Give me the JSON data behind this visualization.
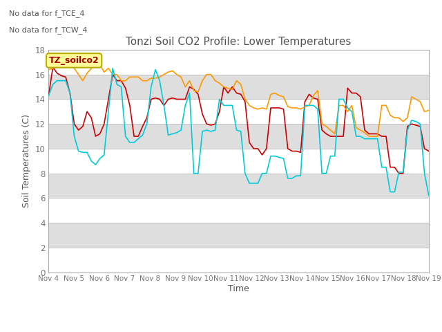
{
  "title": "Tonzi Soil CO2 Profile: Lower Temperatures",
  "xlabel": "Time",
  "ylabel": "Soil Temperatures (C)",
  "ylim": [
    0,
    18
  ],
  "yticks": [
    0,
    2,
    4,
    6,
    8,
    10,
    12,
    14,
    16,
    18
  ],
  "xtick_labels": [
    "Nov 4",
    "Nov 5",
    "Nov 6",
    "Nov 7",
    "Nov 8",
    "Nov 9",
    "Nov 10",
    "Nov 11",
    "Nov 12",
    "Nov 13",
    "Nov 14",
    "Nov 15",
    "Nov 16",
    "Nov 17",
    "Nov 18",
    "Nov 19"
  ],
  "top_left_text_line1": "No data for f_TCE_4",
  "top_left_text_line2": "No data for f_TCW_4",
  "legend_box_text": "TZ_soilco2",
  "legend_box_color": "#FFFF99",
  "legend_box_border": "#BBAA00",
  "colors": {
    "open": "#CC0000",
    "tree": "#FF9900",
    "tree2": "#00CCDD"
  },
  "open_data": [
    14.3,
    16.6,
    16.1,
    15.9,
    15.8,
    14.5,
    12.0,
    11.5,
    11.8,
    13.0,
    12.5,
    11.0,
    11.2,
    12.0,
    14.0,
    16.0,
    15.5,
    15.5,
    14.9,
    13.5,
    11.0,
    11.0,
    11.8,
    12.5,
    14.0,
    14.1,
    14.0,
    13.5,
    14.0,
    14.1,
    14.0,
    14.0,
    14.0,
    15.0,
    14.8,
    14.4,
    12.8,
    12.0,
    11.9,
    12.0,
    13.0,
    15.0,
    14.5,
    15.0,
    14.5,
    14.4,
    13.8,
    10.5,
    10.0,
    10.0,
    9.5,
    10.0,
    13.3,
    13.3,
    13.3,
    13.2,
    10.0,
    9.8,
    9.8,
    9.7,
    13.8,
    14.4,
    14.1,
    14.0,
    11.5,
    11.2,
    11.0,
    11.0,
    11.0,
    11.0,
    14.9,
    14.5,
    14.5,
    14.2,
    11.5,
    11.2,
    11.2,
    11.2,
    11.0,
    11.0,
    8.5,
    8.5,
    8.0,
    8.0,
    11.8,
    12.0,
    11.9,
    11.8,
    10.0,
    9.8
  ],
  "tree_data": [
    16.4,
    16.5,
    16.8,
    17.0,
    17.1,
    16.9,
    16.5,
    16.0,
    15.5,
    16.1,
    16.5,
    17.1,
    16.8,
    16.2,
    16.5,
    16.0,
    16.0,
    15.5,
    15.5,
    15.8,
    15.8,
    15.8,
    15.5,
    15.5,
    15.7,
    15.7,
    15.8,
    16.0,
    16.2,
    16.3,
    16.0,
    15.8,
    15.0,
    15.5,
    14.7,
    14.6,
    15.5,
    16.0,
    16.0,
    15.5,
    15.3,
    15.0,
    14.9,
    14.8,
    15.5,
    15.2,
    14.0,
    13.5,
    13.3,
    13.2,
    13.3,
    13.2,
    14.4,
    14.5,
    14.3,
    14.2,
    13.4,
    13.3,
    13.3,
    13.2,
    13.4,
    13.5,
    14.3,
    14.7,
    12.0,
    11.8,
    11.5,
    11.2,
    13.5,
    13.5,
    13.0,
    13.5,
    11.7,
    11.5,
    11.3,
    11.0,
    11.0,
    11.0,
    13.5,
    13.5,
    12.7,
    12.5,
    12.5,
    12.2,
    12.5,
    14.2,
    14.0,
    13.8,
    13.0,
    13.1
  ],
  "tree2_data": [
    14.3,
    15.2,
    15.5,
    15.5,
    15.5,
    14.5,
    11.0,
    9.8,
    9.7,
    9.7,
    9.0,
    8.7,
    9.2,
    9.5,
    13.0,
    16.5,
    15.2,
    15.0,
    11.0,
    10.5,
    10.5,
    10.8,
    11.1,
    12.0,
    15.0,
    16.4,
    15.5,
    13.5,
    11.1,
    11.2,
    11.3,
    11.5,
    13.5,
    14.5,
    8.0,
    8.0,
    11.4,
    11.5,
    11.4,
    11.5,
    14.0,
    13.5,
    13.5,
    13.5,
    11.5,
    11.4,
    8.0,
    7.2,
    7.2,
    7.2,
    8.0,
    8.0,
    9.4,
    9.4,
    9.3,
    9.2,
    7.6,
    7.6,
    7.8,
    7.8,
    13.5,
    13.5,
    13.5,
    13.2,
    8.0,
    8.0,
    9.4,
    9.4,
    14.0,
    14.0,
    13.3,
    13.0,
    11.0,
    11.0,
    10.8,
    10.8,
    10.8,
    10.8,
    8.5,
    8.5,
    6.5,
    6.5,
    8.1,
    8.1,
    11.5,
    12.3,
    12.2,
    12.0,
    8.0,
    6.2
  ],
  "bg_color": "#FFFFFF",
  "plot_bg_light": "#F5F5F5",
  "plot_bg_dark": "#E0E0E0",
  "band_colors": [
    "#FFFFFF",
    "#DEDEDE"
  ],
  "title_color": "#555555",
  "label_color": "#555555",
  "tick_color": "#777777"
}
